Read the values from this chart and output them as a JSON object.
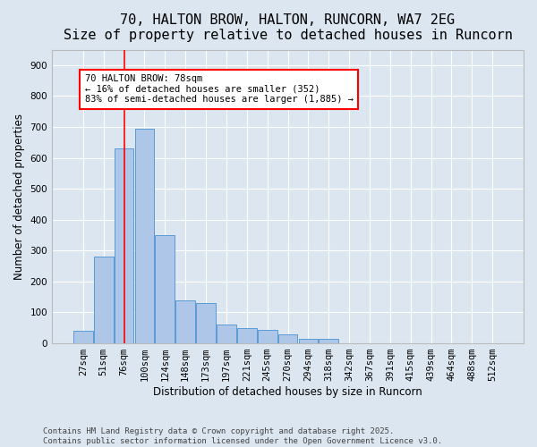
{
  "title_line1": "70, HALTON BROW, HALTON, RUNCORN, WA7 2EG",
  "title_line2": "Size of property relative to detached houses in Runcorn",
  "xlabel": "Distribution of detached houses by size in Runcorn",
  "ylabel": "Number of detached properties",
  "bar_color": "#aec6e8",
  "bar_edge_color": "#5b9bd5",
  "background_color": "#dce6f0",
  "grid_color": "#ffffff",
  "fig_background": "#dce6f0",
  "categories": [
    "27sqm",
    "51sqm",
    "76sqm",
    "100sqm",
    "124sqm",
    "148sqm",
    "173sqm",
    "197sqm",
    "221sqm",
    "245sqm",
    "270sqm",
    "294sqm",
    "318sqm",
    "342sqm",
    "367sqm",
    "391sqm",
    "415sqm",
    "439sqm",
    "464sqm",
    "488sqm",
    "512sqm"
  ],
  "values": [
    40,
    280,
    630,
    695,
    350,
    140,
    130,
    60,
    50,
    45,
    30,
    15,
    15,
    0,
    0,
    0,
    0,
    0,
    0,
    0,
    0
  ],
  "ylim": [
    0,
    950
  ],
  "yticks": [
    0,
    100,
    200,
    300,
    400,
    500,
    600,
    700,
    800,
    900
  ],
  "property_line_x": 2.0,
  "annotation_box_text": "70 HALTON BROW: 78sqm\n← 16% of detached houses are smaller (352)\n83% of semi-detached houses are larger (1,885) →",
  "footnote": "Contains HM Land Registry data © Crown copyright and database right 2025.\nContains public sector information licensed under the Open Government Licence v3.0.",
  "title_fontsize": 11,
  "axis_label_fontsize": 8.5,
  "tick_fontsize": 7.5,
  "annotation_fontsize": 7.5,
  "footnote_fontsize": 6.5
}
